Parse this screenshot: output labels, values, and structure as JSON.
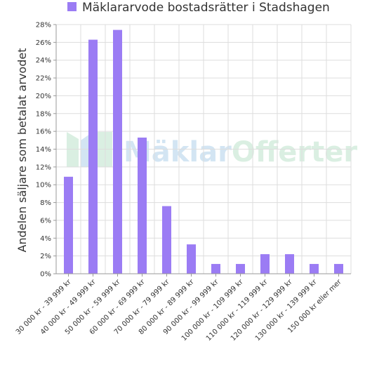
{
  "chart_data": {
    "type": "bar",
    "legend": {
      "label": "Mäklararvode bostadsrätter i Stadshagen",
      "color": "#9b7cf4",
      "position": "top"
    },
    "ylabel": "Andelen säljare som betalat arvodet",
    "xlabel": "",
    "ylim": [
      0,
      28
    ],
    "yticks": [
      0,
      2,
      4,
      6,
      8,
      10,
      12,
      14,
      16,
      18,
      20,
      22,
      24,
      26,
      28
    ],
    "ytick_suffix": "%",
    "grid": true,
    "categories": [
      "30 000 kr - 39 999 kr",
      "40 000 kr - 49 999 kr",
      "50 000 kr - 59 999 kr",
      "60 000 kr - 69 999 kr",
      "70 000 kr - 79 999 kr",
      "80 000 kr - 89 999 kr",
      "90 000 kr - 99 999 kr",
      "100 000 kr - 109 999 kr",
      "110 000 kr - 119 999 kr",
      "120 000 kr - 129 999 kr",
      "130 000 kr - 139 999 kr",
      "150 000 kr eller mer"
    ],
    "values": [
      10.9,
      26.3,
      27.4,
      15.3,
      7.6,
      3.3,
      1.1,
      1.1,
      2.2,
      2.2,
      1.1,
      1.1
    ],
    "bar_color": "#9b7cf4"
  },
  "watermark": {
    "text_a": "Mäklar",
    "text_b": "Offerter",
    "color_a": "#cfe3f2",
    "color_b": "#d7eedf"
  }
}
